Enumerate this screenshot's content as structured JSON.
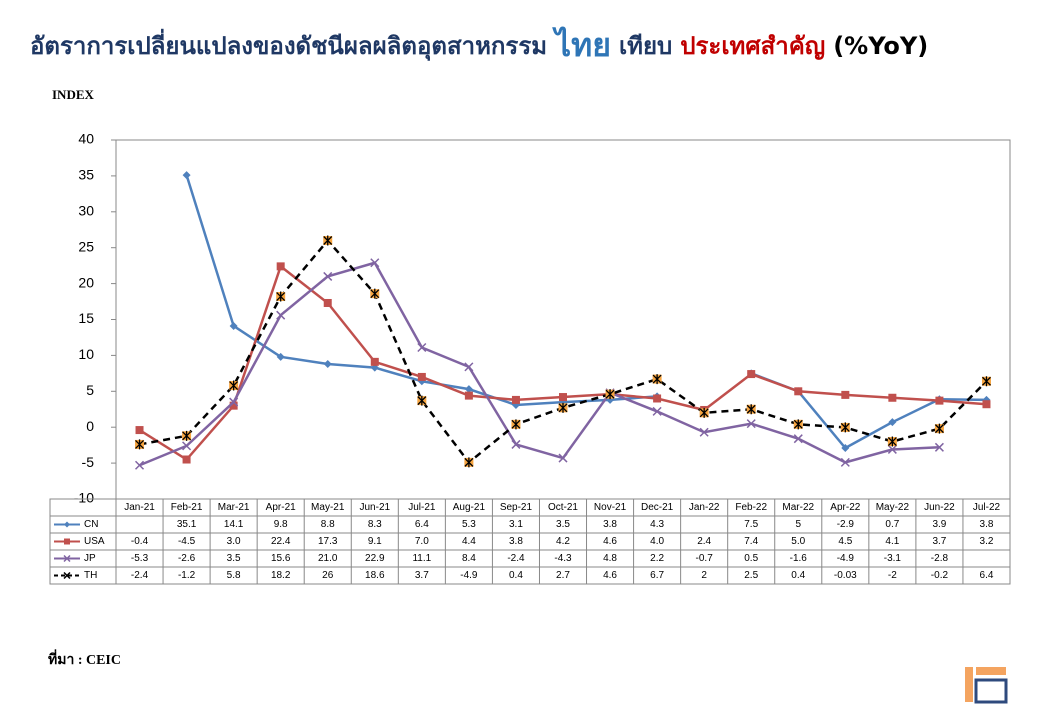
{
  "chart_data": {
    "type": "line",
    "title_parts": [
      {
        "text": "อัตราการเปลี่ยนแปลงของดัชนีผลผลิตอุตสาหกรรม",
        "color": "#1f3864"
      },
      {
        "text": "ไทย",
        "color": "#2e75b6"
      },
      {
        "text": "เทียบ",
        "color": "#1f3864"
      },
      {
        "text": "ประเทศสำคัญ",
        "color": "#c00000"
      },
      {
        "text": "(%YoY)",
        "color": "#000000"
      }
    ],
    "y_label": "INDEX",
    "source": "ที่มา : CEIC",
    "categories": [
      "Jan-21",
      "Feb-21",
      "Mar-21",
      "Apr-21",
      "May-21",
      "Jun-21",
      "Jul-21",
      "Aug-21",
      "Sep-21",
      "Oct-21",
      "Nov-21",
      "Dec-21",
      "Jan-22",
      "Feb-22",
      "Mar-22",
      "Apr-22",
      "May-22",
      "Jun-22",
      "Jul-22"
    ],
    "ylim": [
      -10,
      40
    ],
    "yticks": [
      -10,
      -5,
      0,
      5,
      10,
      15,
      20,
      25,
      30,
      35,
      40
    ],
    "series": [
      {
        "name": "CN",
        "color": "#4f81bd",
        "marker": "diamond",
        "dashed": false,
        "values": [
          null,
          35.1,
          14.1,
          9.8,
          8.8,
          8.3,
          6.4,
          5.3,
          3.1,
          3.5,
          3.8,
          4.3,
          null,
          7.5,
          5,
          -2.9,
          0.7,
          3.9,
          3.8
        ],
        "value_labels": [
          null,
          "35.1",
          "14.1",
          "9.8",
          "8.8",
          "8.3",
          "6.4",
          "5.3",
          "3.1",
          "3.5",
          "3.8",
          "4.3",
          null,
          "7.5",
          "5",
          "-2.9",
          "0.7",
          "3.9",
          "3.8"
        ]
      },
      {
        "name": "USA",
        "color": "#c0504d",
        "marker": "square",
        "dashed": false,
        "values": [
          -0.4,
          -4.5,
          3.0,
          22.4,
          17.3,
          9.1,
          7.0,
          4.4,
          3.8,
          4.2,
          4.6,
          4.0,
          2.4,
          7.4,
          5.0,
          4.5,
          4.1,
          3.7,
          3.2
        ],
        "value_labels": [
          "-0.4",
          "-4.5",
          "3.0",
          "22.4",
          "17.3",
          "9.1",
          "7.0",
          "4.4",
          "3.8",
          "4.2",
          "4.6",
          "4.0",
          "2.4",
          "7.4",
          "5.0",
          "4.5",
          "4.1",
          "3.7",
          "3.2"
        ]
      },
      {
        "name": "JP",
        "color": "#8064a2",
        "marker": "x",
        "dashed": false,
        "values": [
          -5.3,
          -2.6,
          3.5,
          15.6,
          21.0,
          22.9,
          11.1,
          8.4,
          -2.4,
          -4.3,
          4.8,
          2.2,
          -0.7,
          0.5,
          -1.6,
          -4.9,
          -3.1,
          -2.8,
          null
        ],
        "value_labels": [
          "-5.3",
          "-2.6",
          "3.5",
          "15.6",
          "21.0",
          "22.9",
          "11.1",
          "8.4",
          "-2.4",
          "-4.3",
          "4.8",
          "2.2",
          "-0.7",
          "0.5",
          "-1.6",
          "-4.9",
          "-3.1",
          "-2.8",
          null
        ]
      },
      {
        "name": "TH",
        "color": "#000000",
        "marker": "star",
        "dashed": true,
        "values": [
          -2.4,
          -1.2,
          5.8,
          18.2,
          26,
          18.6,
          3.7,
          -4.9,
          0.4,
          2.7,
          4.6,
          6.7,
          2,
          2.5,
          0.4,
          -0.03,
          -2,
          -0.2,
          6.4
        ],
        "value_labels": [
          "-2.4",
          "-1.2",
          "5.8",
          "18.2",
          "26",
          "18.6",
          "3.7",
          "-4.9",
          "0.4",
          "2.7",
          "4.6",
          "6.7",
          "2",
          "2.5",
          "0.4",
          "-0.03",
          "-2",
          "-0.2",
          "6.4"
        ]
      }
    ]
  }
}
